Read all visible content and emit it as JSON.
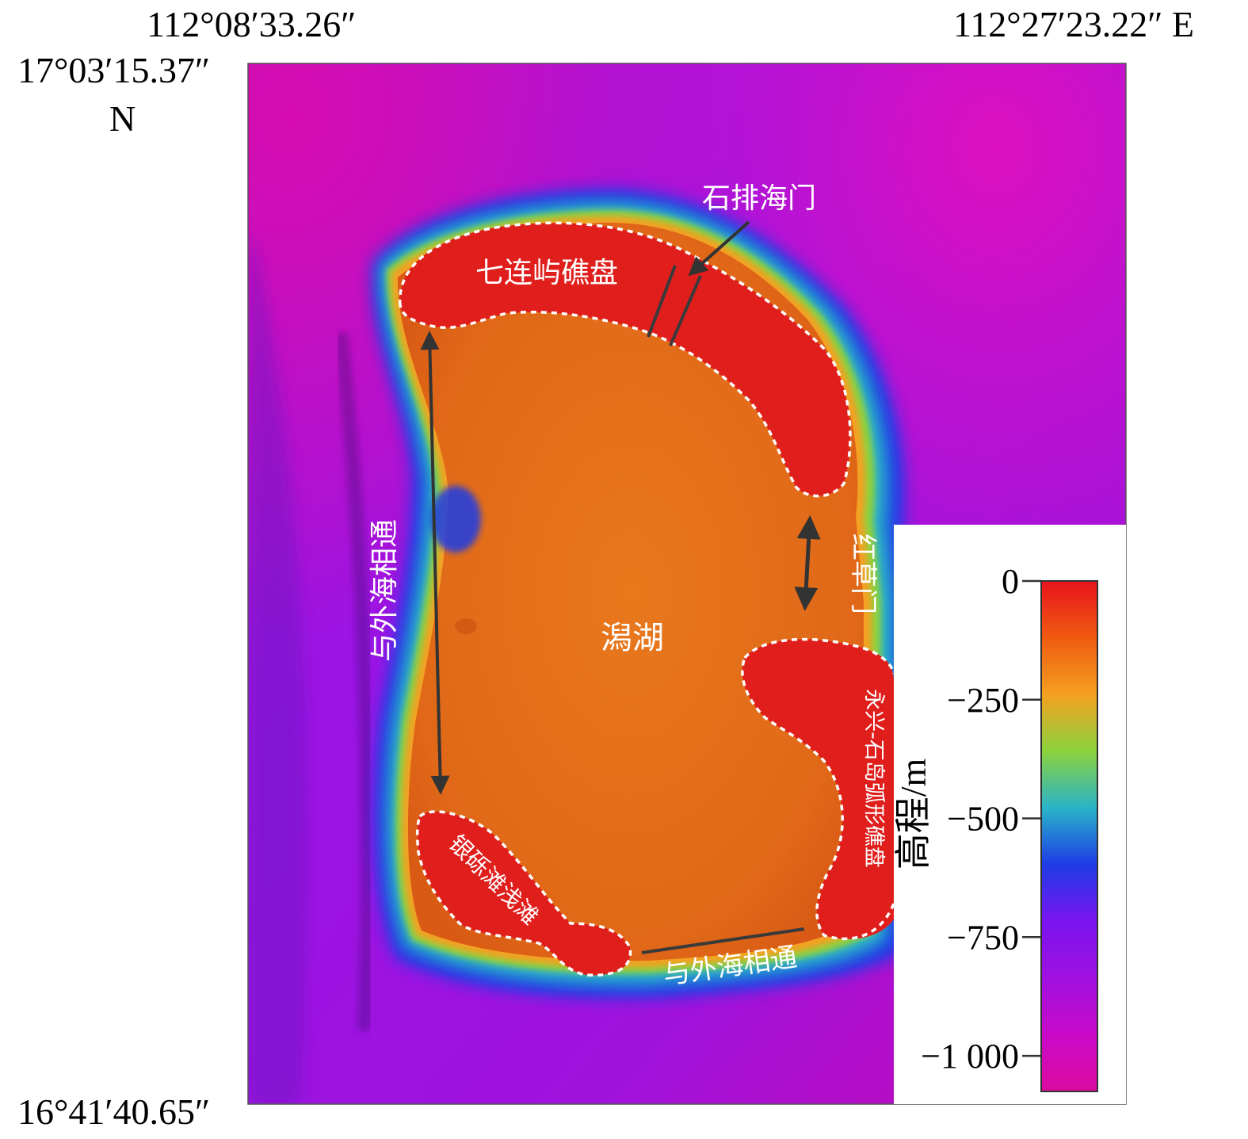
{
  "coords": {
    "top_left_lon": "112°08′33.26″",
    "top_right_lon": "112°27′23.22″ E",
    "top_lat": "17°03′15.37″",
    "north_suffix": "N",
    "bottom_lat": "16°41′40.65″"
  },
  "labels": {
    "shipai_gate": "石排海门",
    "qilianyu_reef": "七连屿礁盘",
    "outer_sea_left": "与外海相通",
    "hongcao_gate": "红草门",
    "lagoon": "潟湖",
    "yongxing_reef": "永兴-石岛弧形礁盘",
    "yinli_shoal": "银砾滩浅滩",
    "outer_sea_bottom": "与外海相通"
  },
  "legend": {
    "title": "高程/m",
    "ticks": [
      "0",
      "−250",
      "−500",
      "−750",
      "−1 000"
    ],
    "tick_values": [
      0,
      -250,
      -500,
      -750,
      -1000
    ],
    "min": -1075,
    "max": 0,
    "colors": [
      "#e8141e",
      "#f05a10",
      "#f4a020",
      "#8cd23c",
      "#2ab4c8",
      "#1e3ce6",
      "#7a14f0",
      "#a010e0",
      "#c80ac8",
      "#dc0aa0"
    ]
  }
}
